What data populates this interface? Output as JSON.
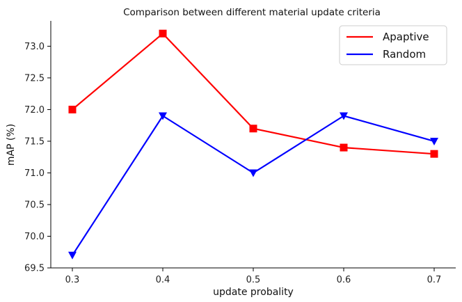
{
  "chart_data": {
    "type": "line",
    "title": "Comparison between different  material update criteria",
    "xlabel": "update probality",
    "ylabel": "mAP (%)",
    "x": [
      0.3,
      0.4,
      0.5,
      0.6,
      0.7
    ],
    "x_tick_labels": [
      "0.3",
      "0.4",
      "0.5",
      "0.6",
      "0.7"
    ],
    "ylim": [
      69.5,
      73.4
    ],
    "y_ticks": [
      69.5,
      70.0,
      70.5,
      71.0,
      71.5,
      72.0,
      72.5,
      73.0
    ],
    "y_tick_labels": [
      "69.5",
      "70.0",
      "70.5",
      "71.0",
      "71.5",
      "72.0",
      "72.5",
      "73.0"
    ],
    "grid": false,
    "legend_position": "top-right",
    "series": [
      {
        "name": "Apaptive",
        "color": "#ff0000",
        "marker": "square",
        "values": [
          72.0,
          73.2,
          71.7,
          71.4,
          71.3
        ]
      },
      {
        "name": "Random",
        "color": "#0000ff",
        "marker": "triangle-down",
        "values": [
          69.7,
          71.9,
          71.0,
          71.9,
          71.5
        ]
      }
    ]
  }
}
